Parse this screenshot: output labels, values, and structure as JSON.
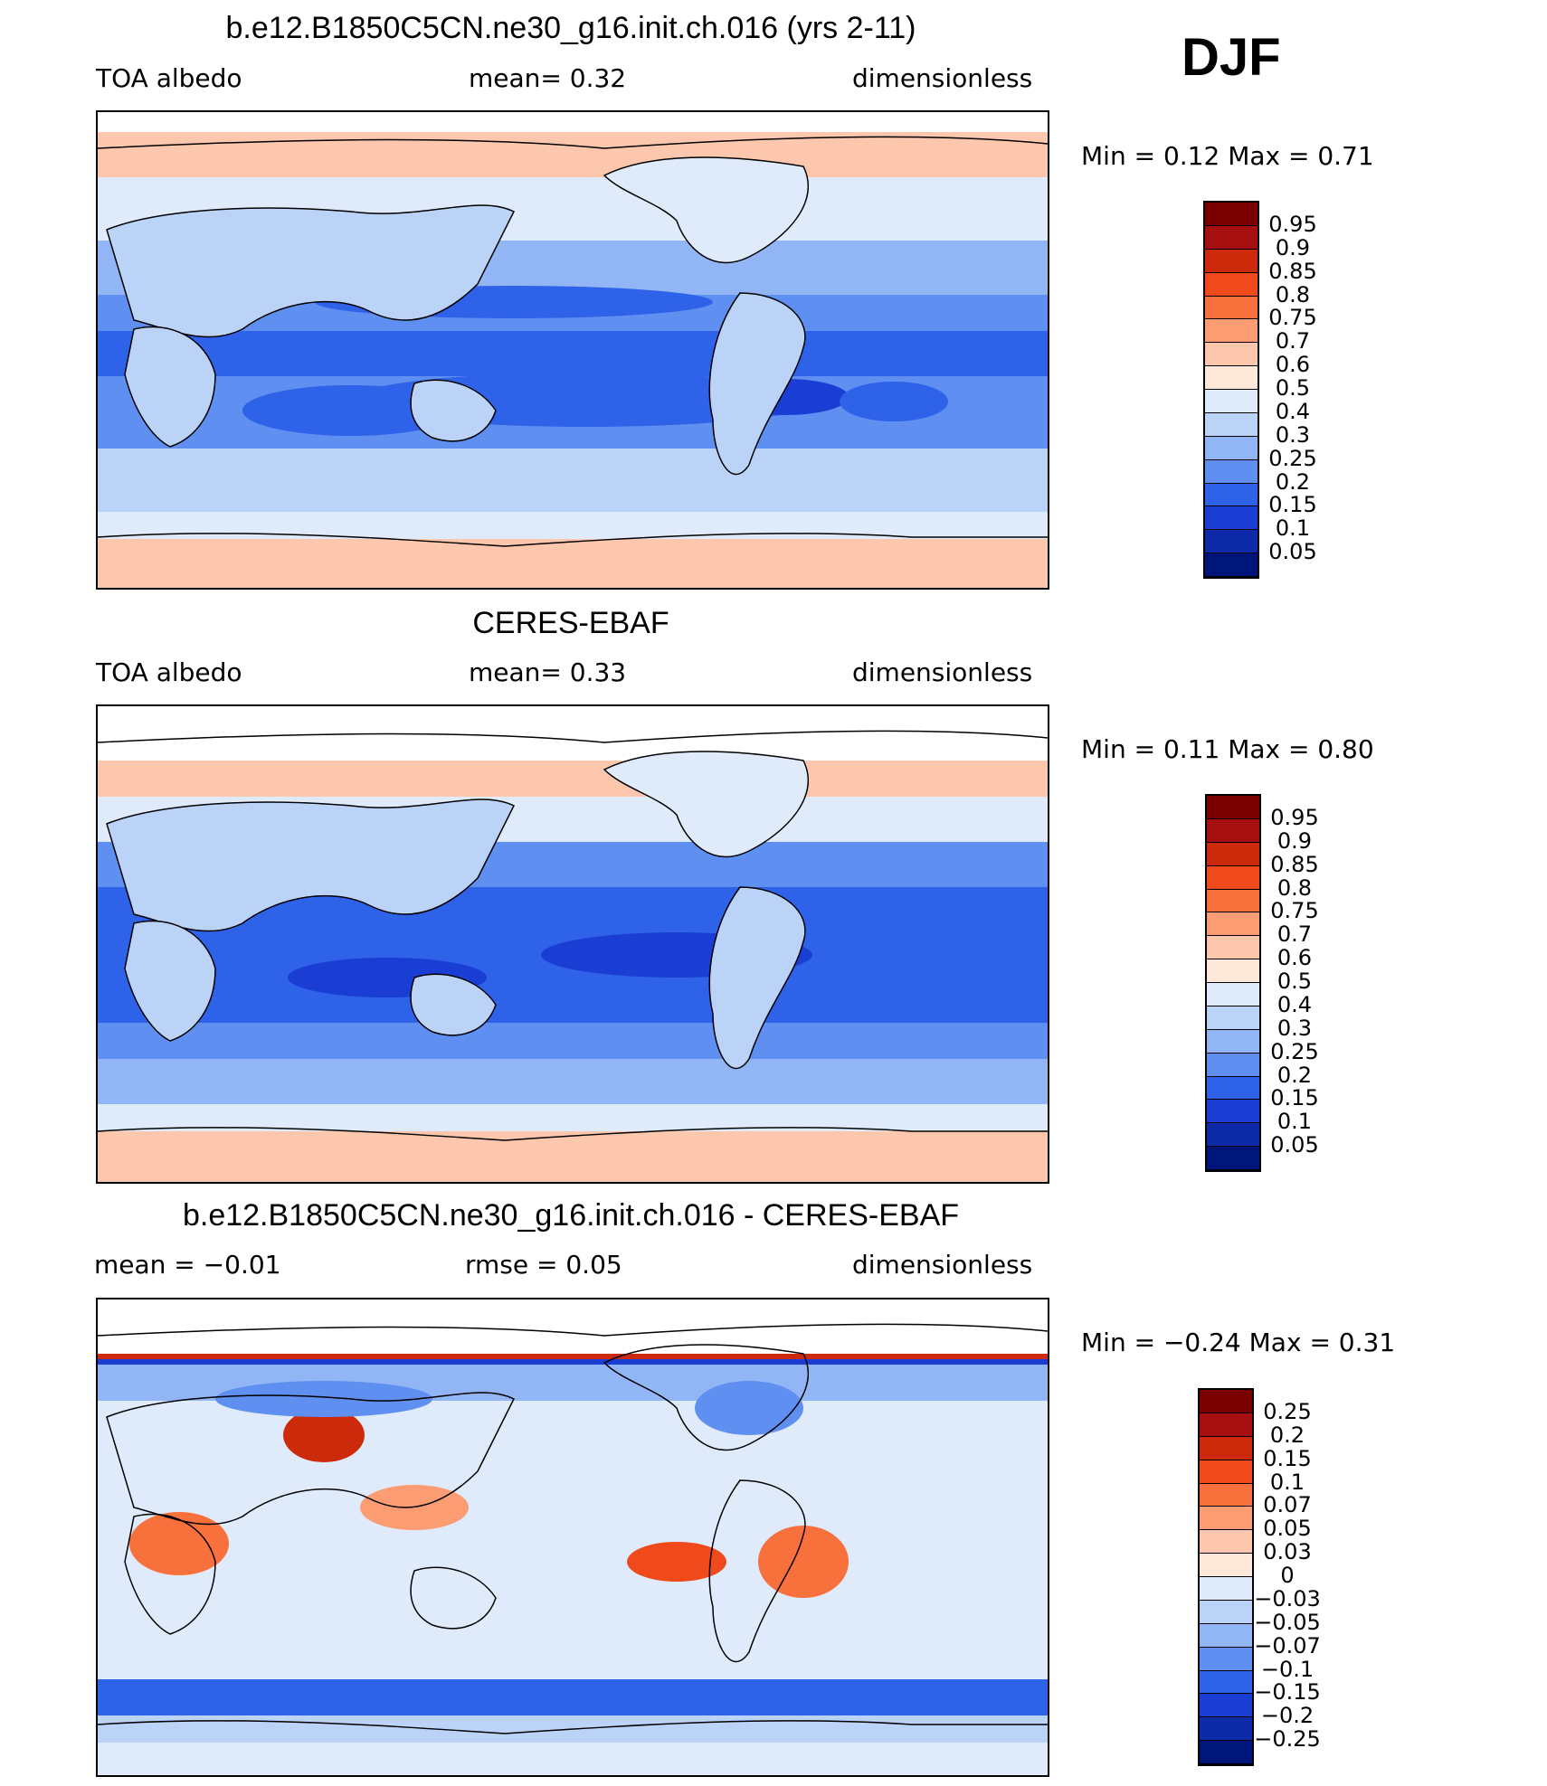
{
  "season": "DJF",
  "panels": [
    {
      "title": "b.e12.B1850C5CN.ne30_g16.init.ch.016 (yrs 2-11)",
      "left_label": "TOA  albedo",
      "center_label": "mean=    0.32",
      "right_label": "dimensionless",
      "minmax": "Min  =     0.12  Max  =     0.71",
      "colorbar_labels": [
        "0.95",
        "0.9",
        "0.85",
        "0.8",
        "0.75",
        "0.7",
        "0.6",
        "0.5",
        "0.4",
        "0.3",
        "0.25",
        "0.2",
        "0.15",
        "0.1",
        "0.05"
      ]
    },
    {
      "title": "CERES-EBAF",
      "left_label": "TOA  albedo",
      "center_label": "mean=    0.33",
      "right_label": "dimensionless",
      "minmax": "Min  =     0.11  Max  =     0.80",
      "colorbar_labels": [
        "0.95",
        "0.9",
        "0.85",
        "0.8",
        "0.75",
        "0.7",
        "0.6",
        "0.5",
        "0.4",
        "0.3",
        "0.25",
        "0.2",
        "0.15",
        "0.1",
        "0.05"
      ]
    },
    {
      "title": "b.e12.B1850C5CN.ne30_g16.init.ch.016 - CERES-EBAF",
      "left_label": "mean  =    −0.01",
      "center_label": "rmse  =     0.05",
      "right_label": "dimensionless",
      "minmax": "Min  =    −0.24  Max  =     0.31",
      "colorbar_labels": [
        "0.25",
        "0.2",
        "0.15",
        "0.1",
        "0.07",
        "0.05",
        "0.03",
        "0",
        "−0.03",
        "−0.05",
        "−0.07",
        "−0.1",
        "−0.15",
        "−0.2",
        "−0.25"
      ]
    }
  ],
  "colorbar_colors": [
    "#7a0000",
    "#a50f0f",
    "#cc2a0a",
    "#f04a1c",
    "#f8713c",
    "#fb9c73",
    "#fcc7ad",
    "#fde8da",
    "#dfeafb",
    "#bcd3f8",
    "#92b5f5",
    "#5f8ff0",
    "#2e62e8",
    "#1a3ed4",
    "#0d2aa8",
    "#00157a"
  ]
}
